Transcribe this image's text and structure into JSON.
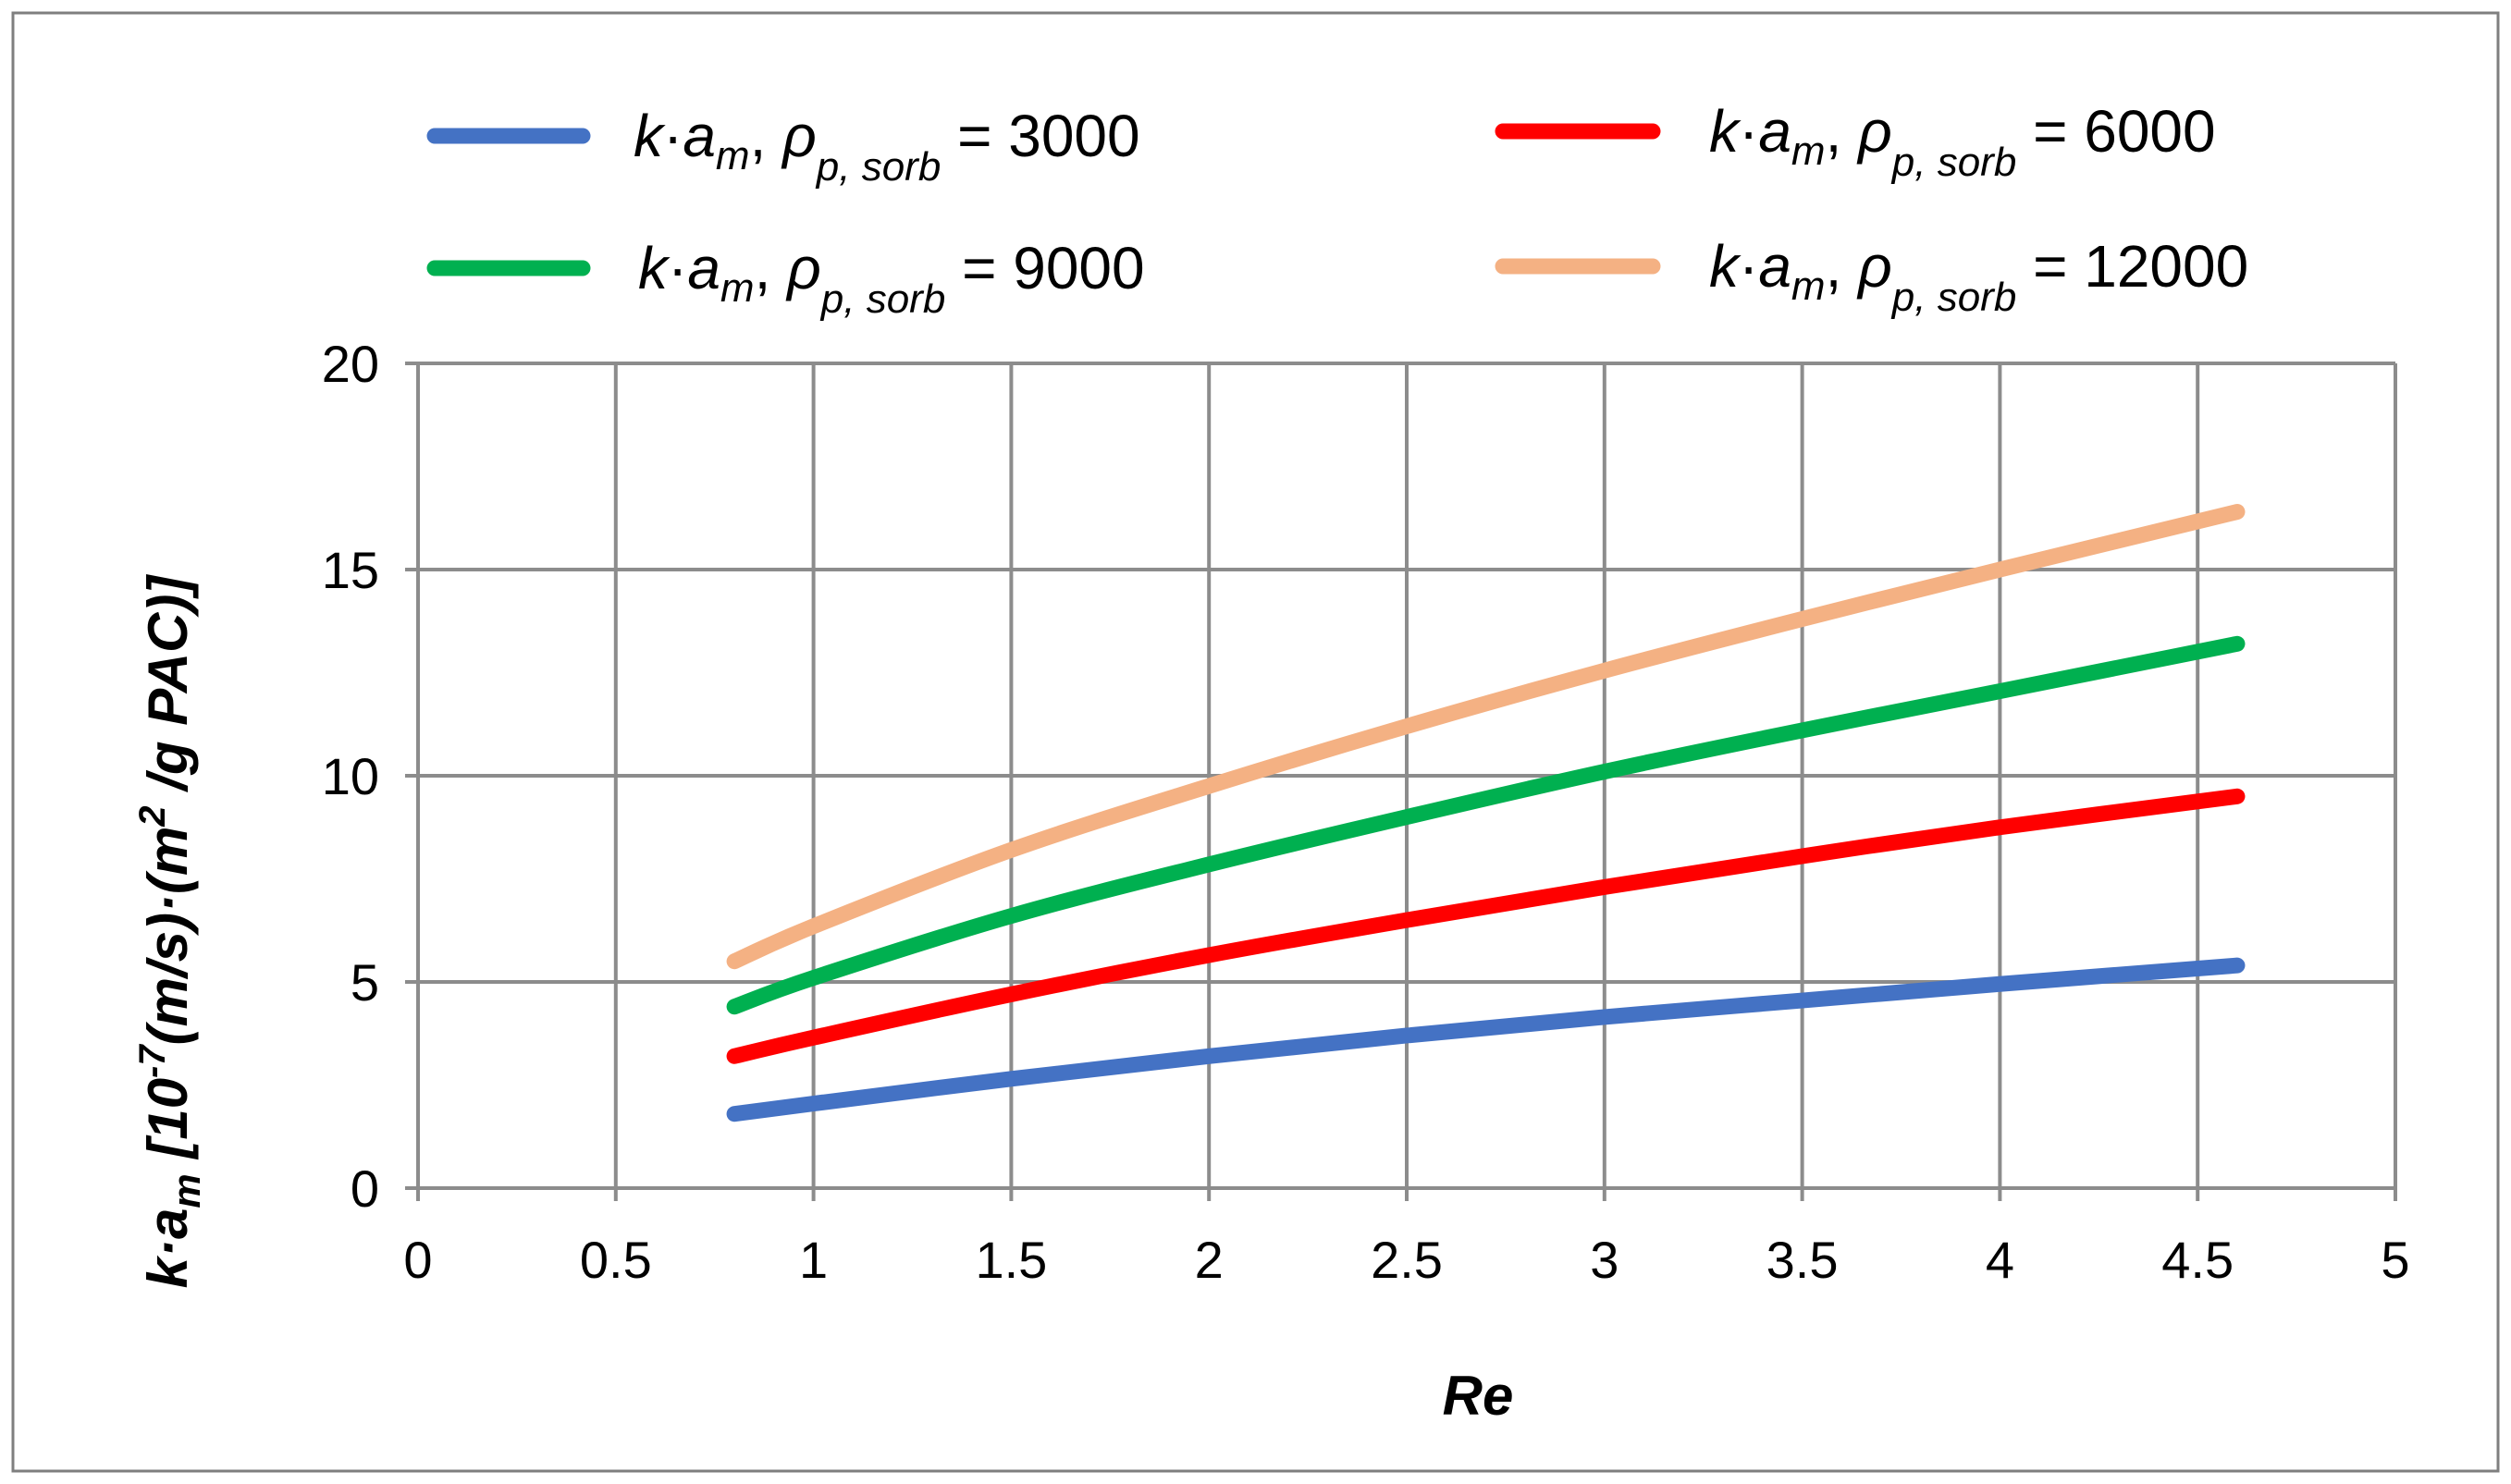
{
  "chart_data": {
    "type": "line",
    "title": "",
    "xlabel": "Re",
    "ylabel": {
      "prefix": "k·a",
      "prefix_sub": "m",
      "main": " [10",
      "exp": "-7",
      "middle": "(m/s)·(m",
      "exp2": "2",
      "suffix": " /g PAC)]"
    },
    "xlim": [
      0,
      5
    ],
    "ylim": [
      0,
      20
    ],
    "xticks": [
      "0",
      "0.5",
      "1",
      "1.5",
      "2",
      "2.5",
      "3",
      "3.5",
      "4",
      "4.5",
      "5"
    ],
    "yticks": [
      "0",
      "5",
      "10",
      "15",
      "20"
    ],
    "grid": true,
    "legend_position": "top",
    "x": [
      0.8,
      1.0,
      1.5,
      2.0,
      2.5,
      3.0,
      3.5,
      4.0,
      4.6
    ],
    "series": [
      {
        "name": "k·am, ρp, sorb = 3000",
        "legend": {
          "k": "k",
          "dot": "·",
          "a": "a",
          "a_sub": "m",
          "sep": ", ",
          "rho": "ρ",
          "rho_sub": "p, sorb",
          "eq": " = 3000"
        },
        "color": "#4472C4",
        "values": [
          1.8,
          2.05,
          2.65,
          3.2,
          3.7,
          4.15,
          4.55,
          4.95,
          5.4
        ]
      },
      {
        "name": "k·am, ρp, sorb = 6000",
        "legend": {
          "k": "k",
          "dot": "·",
          "a": "a",
          "a_sub": "m",
          "sep": ", ",
          "rho": "ρ",
          "rho_sub": "p, sorb",
          "eq": " = 6000"
        },
        "color": "#FF0000",
        "values": [
          3.2,
          3.65,
          4.7,
          5.65,
          6.5,
          7.3,
          8.05,
          8.75,
          9.5
        ]
      },
      {
        "name": "k·am, ρp, sorb = 9000",
        "legend": {
          "k": "k",
          "dot": "·",
          "a": "a",
          "a_sub": "m",
          "sep": ", ",
          "rho": "ρ",
          "rho_sub": "p, sorb",
          "eq": " = 9000"
        },
        "color": "#00B050",
        "values": [
          4.4,
          5.1,
          6.6,
          7.85,
          9.0,
          10.1,
          11.1,
          12.05,
          13.2
        ]
      },
      {
        "name": "k·am, ρp, sorb = 12000",
        "legend": {
          "k": "k",
          "dot": "·",
          "a": "a",
          "a_sub": "m",
          "sep": ", ",
          "rho": "ρ",
          "rho_sub": "p, sorb",
          "eq": " = 12000"
        },
        "color": "#F4B183",
        "values": [
          5.5,
          6.35,
          8.2,
          9.75,
          11.2,
          12.55,
          13.8,
          15.0,
          16.4
        ]
      }
    ]
  }
}
